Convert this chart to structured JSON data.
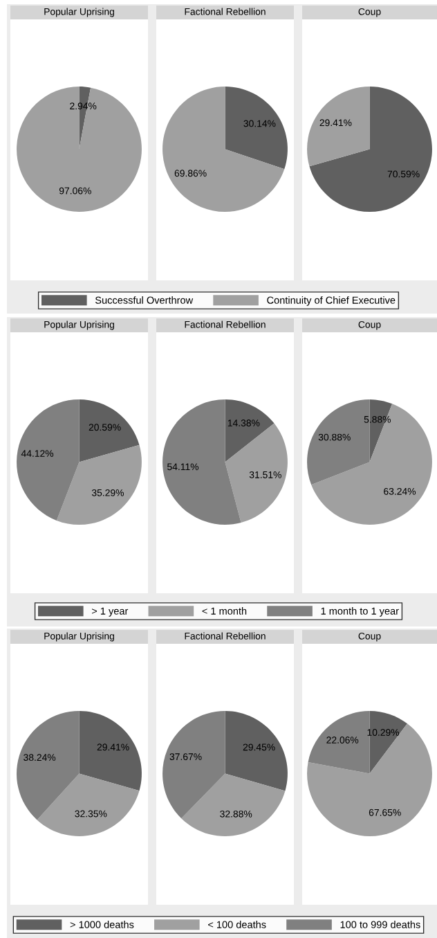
{
  "chart_data": [
    {
      "type": "pie",
      "title": "Popular Uprising",
      "categories": [
        "Successful Overthrow",
        "Continuity of Chief Executive"
      ],
      "values": [
        2.94,
        97.06
      ],
      "colors": [
        "#606060",
        "#a0a0a0"
      ],
      "value_labels": [
        "2.94%",
        "97.06%"
      ],
      "legend": "bottom"
    },
    {
      "type": "pie",
      "title": "Factional Rebellion",
      "categories": [
        null,
        null
      ],
      "values": [
        30.14,
        69.86
      ],
      "colors": [
        "#606060",
        "#a0a0a0"
      ],
      "value_labels": [
        "30.14%",
        "69.86%"
      ]
    },
    {
      "type": "pie",
      "title": "Coup",
      "categories": [
        null,
        null
      ],
      "values": [
        70.59,
        29.41
      ],
      "colors": [
        "#606060",
        "#a0a0a0"
      ],
      "value_labels": [
        "70.59%",
        "29.41%"
      ]
    },
    {
      "type": "pie",
      "title": "Popular Uprising",
      "categories": [
        "> 1 year",
        "< 1 month",
        "1 month to 1 year"
      ],
      "values": [
        20.59,
        35.29,
        44.12
      ],
      "colors": [
        "#606060",
        "#a0a0a0",
        "#808080"
      ],
      "value_labels": [
        "20.59%",
        "35.29%",
        "44.12%"
      ],
      "legend": "bottom"
    },
    {
      "type": "pie",
      "title": "Factional Rebellion",
      "categories": [
        null,
        null,
        null
      ],
      "values": [
        14.38,
        31.51,
        54.11
      ],
      "colors": [
        "#606060",
        "#a0a0a0",
        "#808080"
      ],
      "value_labels": [
        "14.38%",
        "31.51%",
        "54.11%"
      ]
    },
    {
      "type": "pie",
      "title": "Coup",
      "categories": [
        null,
        null,
        null
      ],
      "values": [
        5.88,
        63.24,
        30.88
      ],
      "colors": [
        "#606060",
        "#a0a0a0",
        "#808080"
      ],
      "value_labels": [
        "5.88%",
        "63.24%",
        "30.88%"
      ]
    },
    {
      "type": "pie",
      "title": "Popular Uprising",
      "categories": [
        "> 1000 deaths",
        "< 100 deaths",
        "100 to 999 deaths"
      ],
      "values": [
        29.41,
        32.35,
        38.24
      ],
      "colors": [
        "#606060",
        "#a0a0a0",
        "#808080"
      ],
      "value_labels": [
        "29.41%",
        "32.35%",
        "38.24%"
      ],
      "legend": "bottom"
    },
    {
      "type": "pie",
      "title": "Factional Rebellion",
      "categories": [
        null,
        null,
        null
      ],
      "values": [
        29.45,
        32.88,
        37.67
      ],
      "colors": [
        "#606060",
        "#a0a0a0",
        "#808080"
      ],
      "value_labels": [
        "29.45%",
        "32.88%",
        "37.67%"
      ]
    },
    {
      "type": "pie",
      "title": "Coup",
      "categories": [
        null,
        null,
        null
      ],
      "values": [
        10.29,
        67.65,
        22.06
      ],
      "colors": [
        "#606060",
        "#a0a0a0",
        "#808080"
      ],
      "value_labels": [
        "10.29%",
        "67.65%",
        "22.06%"
      ]
    }
  ]
}
